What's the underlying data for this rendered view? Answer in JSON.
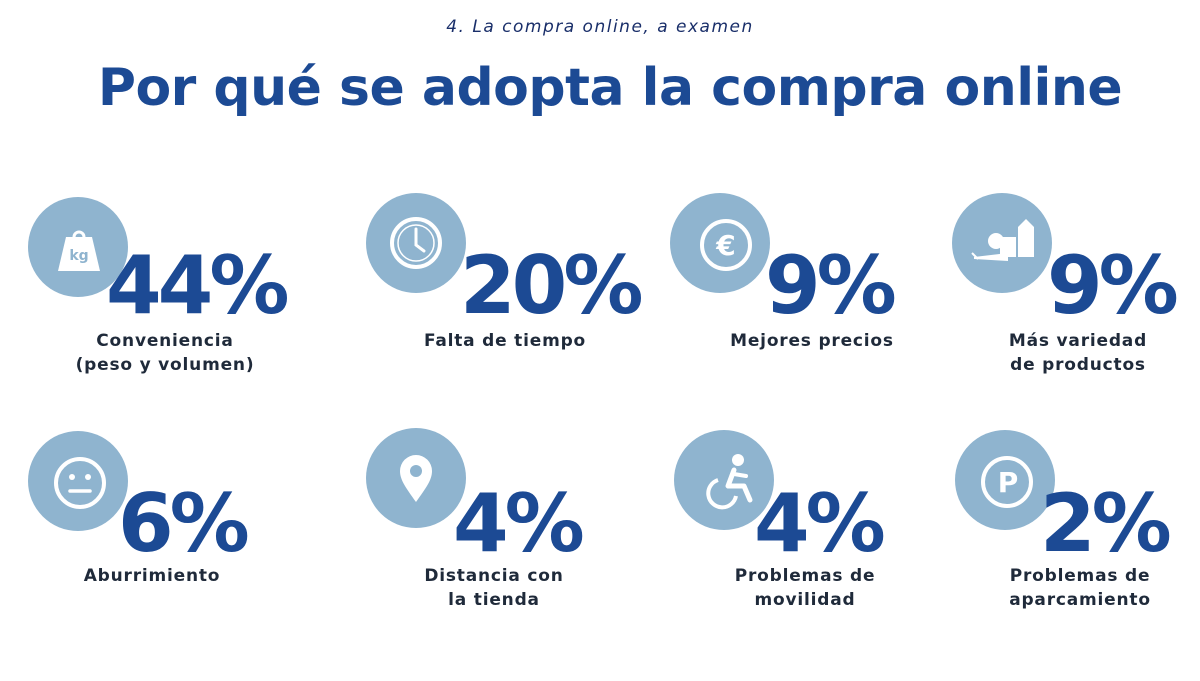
{
  "header": {
    "subtitle": "4. La compra online, a examen",
    "title": "Por qué se adopta la compra online"
  },
  "stats": [
    {
      "value": "44%",
      "label_lines": [
        "Conveniencia",
        "(peso y volumen)"
      ],
      "icon": "kg-weight-icon"
    },
    {
      "value": "20%",
      "label_lines": [
        "Falta de tiempo"
      ],
      "icon": "clock-icon"
    },
    {
      "value": "9%",
      "label_lines": [
        "Mejores precios"
      ],
      "icon": "euro-icon"
    },
    {
      "value": "9%",
      "label_lines": [
        "Más variedad",
        "de productos"
      ],
      "icon": "groceries-icon"
    },
    {
      "value": "6%",
      "label_lines": [
        "Aburrimiento"
      ],
      "icon": "neutral-face-icon"
    },
    {
      "value": "4%",
      "label_lines": [
        "Distancia con",
        "la tienda"
      ],
      "icon": "map-pin-icon"
    },
    {
      "value": "4%",
      "label_lines": [
        "Problemas de",
        "movilidad"
      ],
      "icon": "wheelchair-icon"
    },
    {
      "value": "2%",
      "label_lines": [
        "Problemas de",
        "aparcamiento"
      ],
      "icon": "parking-icon"
    }
  ],
  "colors": {
    "title": "#1c4a94",
    "circle": "#8fb4cf",
    "label": "#1f2a3a"
  }
}
